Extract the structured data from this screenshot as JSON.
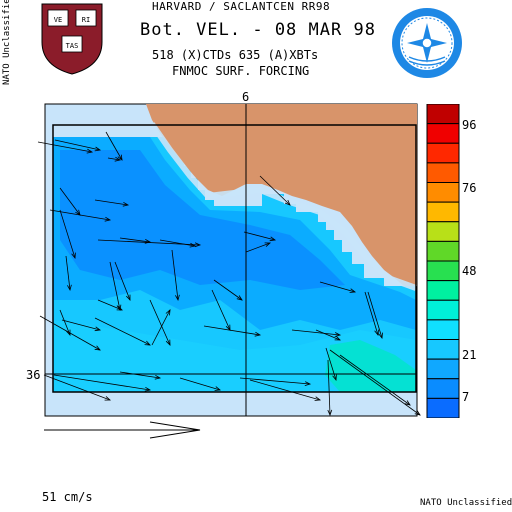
{
  "header": {
    "line1": "HARVARD / SACLANTCEN RR98",
    "line2": "Bot. VEL. - 08 MAR 98",
    "line3": "518 (X)CTDs   635 (A)XBTs",
    "line4": "FNMOC SURF. FORCING"
  },
  "classification": {
    "left": "NATO Unclassified",
    "bottom": "NATO Unclassified"
  },
  "logos": {
    "harvard": {
      "icon": "harvard-shield-icon",
      "text": [
        "VE",
        "RI",
        "TAS"
      ]
    },
    "saclantcen": {
      "icon": "saclantcen-emblem-icon"
    }
  },
  "map": {
    "lon_tick_label": "6",
    "lat_tick_label": "36",
    "scale_label": "51 cm/s",
    "colors": {
      "land": "#d8946a",
      "outer_frame": "#c8e4fa",
      "light_cyan": "#17c8ff",
      "mid_blue": "#0aa8ff",
      "deep_blue": "#0a8cff",
      "teal": "#00e6c8"
    }
  },
  "colorbar": {
    "levels": [
      "#0a6cff",
      "#0a8cff",
      "#10a8ff",
      "#17c8ff",
      "#10e0ff",
      "#00f0d8",
      "#00f0a0",
      "#28e050",
      "#60d828",
      "#b8e018",
      "#ffb800",
      "#ff8c00",
      "#ff5a00",
      "#ff2800",
      "#f00000",
      "#c00000"
    ],
    "labels": [
      "96",
      "76",
      "48",
      "21",
      "7"
    ]
  }
}
